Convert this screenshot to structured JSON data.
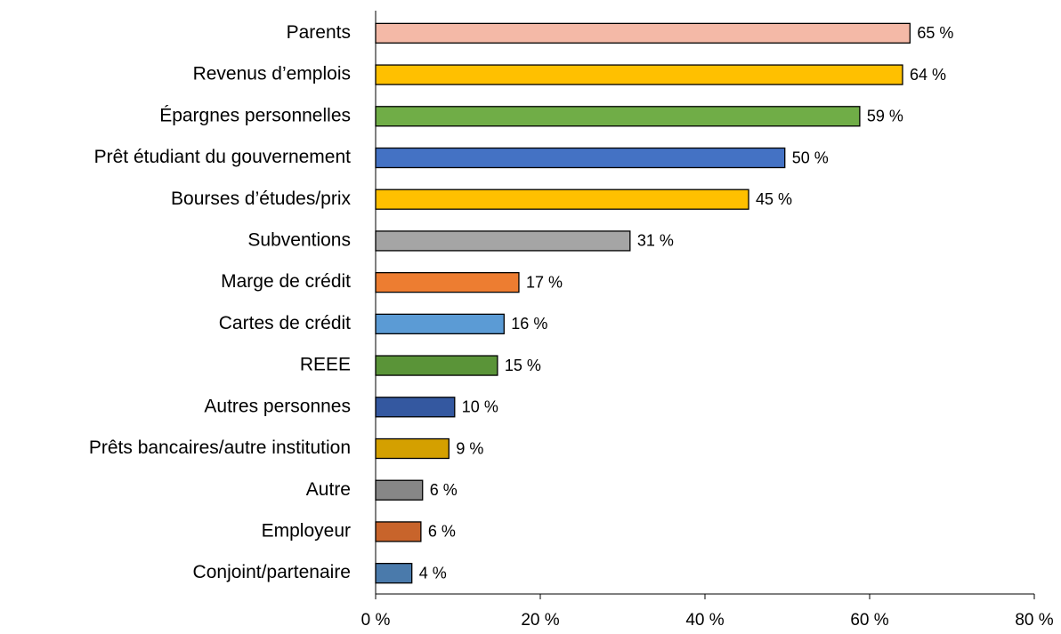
{
  "chart_data": {
    "type": "bar",
    "orientation": "horizontal",
    "categories": [
      "Parents",
      "Revenus d’emplois",
      "Épargnes personnelles",
      "Prêt étudiant du gouvernement",
      "Bourses d’études/prix",
      "Subventions",
      "Marge de crédit",
      "Cartes de crédit",
      "REEE",
      "Autres personnes",
      "Prêts bancaires/autre institution",
      "Autre",
      "Employeur",
      "Conjoint/partenaire"
    ],
    "values": [
      64.9,
      64.0,
      58.8,
      49.7,
      45.3,
      30.9,
      17.4,
      15.6,
      14.8,
      9.6,
      8.9,
      5.7,
      5.5,
      4.4
    ],
    "value_labels": [
      "65 %",
      "64 %",
      "59 %",
      "50 %",
      "45 %",
      "31 %",
      "17 %",
      "16 %",
      "15 %",
      "10 %",
      "9 %",
      "6 %",
      "6 %",
      "4 %"
    ],
    "colors": [
      "#f4b9a7",
      "#ffc000",
      "#70ad47",
      "#4472c4",
      "#ffc000",
      "#a5a5a5",
      "#ed7d31",
      "#5b9bd5",
      "#5a9438",
      "#3458a0",
      "#d4a000",
      "#878787",
      "#c8642b",
      "#4a7aab"
    ],
    "xlim": [
      0,
      80
    ],
    "xticks": [
      {
        "value": 0,
        "label": "0 %"
      },
      {
        "value": 20,
        "label": "20 %"
      },
      {
        "value": 40,
        "label": "40 %"
      },
      {
        "value": 60,
        "label": "60 %"
      },
      {
        "value": 80,
        "label": "80 %"
      }
    ],
    "grid": false
  }
}
